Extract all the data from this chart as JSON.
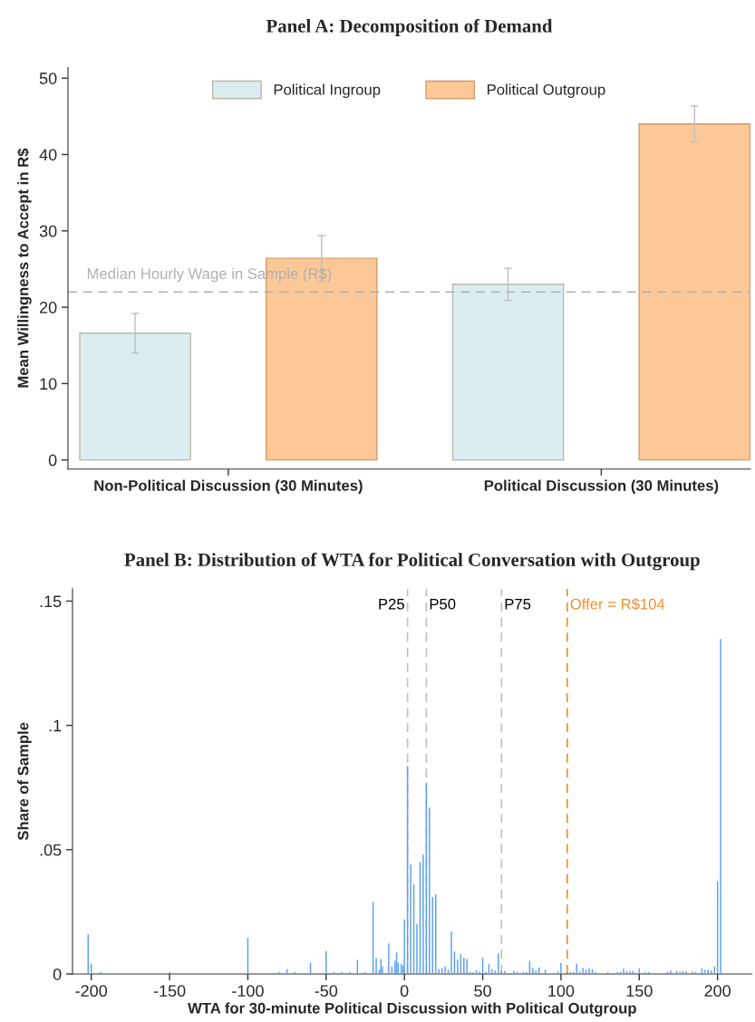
{
  "chart_data": [
    {
      "type": "bar",
      "title": "Panel A: Decomposition of Demand",
      "ylabel": "Mean Willingness to Accept in R$",
      "categories": [
        "Non-Political Discussion (30 Minutes)",
        "Political Discussion (30 Minutes)"
      ],
      "series": [
        {
          "name": "Political Ingroup",
          "color": "#dcedf2",
          "values": [
            16.6,
            23.0
          ],
          "errors": [
            2.6,
            2.1
          ]
        },
        {
          "name": "Political Outgroup",
          "color": "#fdc897",
          "values": [
            26.4,
            44.0
          ],
          "errors": [
            3.0,
            2.35
          ]
        }
      ],
      "ylim": [
        -1.2,
        51.4
      ],
      "yticks": [
        0,
        10,
        20,
        30,
        40,
        50
      ],
      "grid": false,
      "legend": "top",
      "ref_lines": [
        {
          "axis": "y",
          "value": 22,
          "label": "Median Hourly Wage in Sample (R$)",
          "color": "#b0b0b0",
          "line_style": "dashed"
        }
      ]
    },
    {
      "type": "bar",
      "title": "Panel B: Distribution of WTA for Political Conversation with Outgroup",
      "xlabel": "WTA for 30-minute Political Discussion with Political Outgroup",
      "ylabel": "Share of Sample",
      "x": [
        -202,
        -200,
        -194,
        -150,
        -100,
        -80,
        -75,
        -70,
        -60,
        -50,
        -45,
        -40,
        -35,
        -30,
        -25,
        -20,
        -18,
        -16,
        -15,
        -14,
        -10,
        -8,
        -6,
        -5,
        -4,
        -2,
        -1,
        0,
        2,
        4,
        6,
        8,
        10,
        12,
        14,
        16,
        18,
        20,
        22,
        24,
        26,
        28,
        30,
        32,
        34,
        36,
        38,
        40,
        42,
        44,
        46,
        48,
        50,
        52,
        54,
        56,
        58,
        60,
        62,
        64,
        70,
        72,
        76,
        78,
        80,
        82,
        84,
        86,
        90,
        98,
        100,
        106,
        108,
        110,
        112,
        114,
        116,
        118,
        120,
        122,
        130,
        136,
        138,
        140,
        142,
        144,
        146,
        150,
        154,
        156,
        168,
        170,
        174,
        176,
        178,
        180,
        184,
        186,
        190,
        192,
        194,
        196,
        198,
        200,
        202
      ],
      "values": [
        0.0159,
        0.0041,
        0.0008,
        0.0008,
        0.0146,
        0.0008,
        0.002,
        0.0008,
        0.0045,
        0.0092,
        0.0008,
        0.0008,
        0.0008,
        0.0057,
        0.0008,
        0.029,
        0.0065,
        0.0017,
        0.006,
        0.003,
        0.0123,
        0.003,
        0.0053,
        0.0086,
        0.0046,
        0.004,
        0.0035,
        0.022,
        0.0837,
        0.044,
        0.036,
        0.02,
        0.045,
        0.048,
        0.077,
        0.067,
        0.031,
        0.032,
        0.002,
        0.0023,
        0.003,
        0.0018,
        0.017,
        0.009,
        0.0057,
        0.008,
        0.0066,
        0.006,
        0.0008,
        0.0008,
        0.0016,
        0.001,
        0.0066,
        0.0008,
        0.004,
        0.002,
        0.0014,
        0.0083,
        0.0013,
        0.0012,
        0.0013,
        0.0008,
        0.0008,
        0.0008,
        0.0053,
        0.0024,
        0.0014,
        0.0026,
        0.0017,
        0.001,
        0.0045,
        0.0008,
        0.0008,
        0.0042,
        0.001,
        0.0025,
        0.0017,
        0.0024,
        0.002,
        0.0008,
        0.0008,
        0.0008,
        0.0008,
        0.0022,
        0.001,
        0.0012,
        0.0013,
        0.0022,
        0.0008,
        0.0008,
        0.0008,
        0.0014,
        0.0012,
        0.0008,
        0.0012,
        0.0012,
        0.001,
        0.0008,
        0.0022,
        0.0017,
        0.0017,
        0.0014,
        0.003,
        0.0373,
        0.1348
      ],
      "color": "#5aa0f5",
      "xlim": [
        -212,
        222
      ],
      "xticks": [
        -200,
        -150,
        -100,
        -50,
        0,
        50,
        100,
        150,
        200
      ],
      "ylim": [
        0,
        0.155
      ],
      "yticks": [
        {
          "value": 0,
          "label": "0"
        },
        {
          "value": 0.05,
          "label": ".05"
        },
        {
          "value": 0.1,
          "label": ".1"
        },
        {
          "value": 0.15,
          "label": ".15"
        }
      ],
      "grid": false,
      "ref_lines": [
        {
          "axis": "x",
          "value": 2,
          "label": "P25",
          "color": "#c0c0c0",
          "line_style": "dashed"
        },
        {
          "axis": "x",
          "value": 14,
          "label": "P50",
          "color": "#c0c0c0",
          "line_style": "dashed"
        },
        {
          "axis": "x",
          "value": 62,
          "label": "P75",
          "color": "#c0c0c0",
          "line_style": "dashed"
        },
        {
          "axis": "x",
          "value": 104,
          "label": "Offer = R$104",
          "color": "#f28e2b",
          "line_style": "dashed"
        }
      ]
    }
  ]
}
